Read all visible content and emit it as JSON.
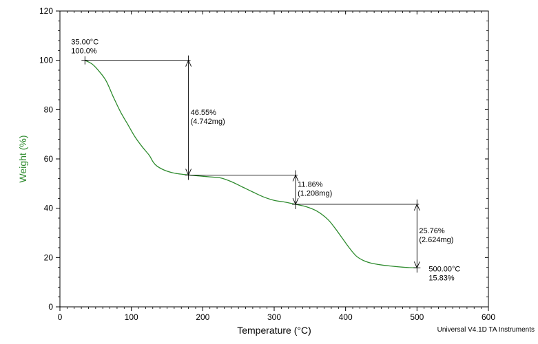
{
  "chart_data": {
    "type": "line",
    "title": "",
    "xlabel": "Temperature (°C)",
    "ylabel": "Weight (%)",
    "xlim": [
      0,
      600
    ],
    "ylim": [
      0,
      120
    ],
    "x_ticks": [
      0,
      100,
      200,
      300,
      400,
      500,
      600
    ],
    "y_ticks": [
      0,
      20,
      40,
      60,
      80,
      100,
      120
    ],
    "x_tick_labels": [
      "0",
      "100",
      "200",
      "300",
      "400",
      "500",
      "600"
    ],
    "y_tick_labels": [
      "0",
      "20",
      "40",
      "60",
      "80",
      "100",
      "120"
    ],
    "grid": false,
    "legend": "none",
    "footer": "Universal V4.1D TA Instruments",
    "colors": {
      "curve": "#2e8b2e",
      "ylabel": "#2e8b2e",
      "axes": "#000000",
      "annotation": "#000000"
    },
    "series": [
      {
        "x": [
          35,
          45,
          55,
          65,
          75,
          85,
          95,
          105,
          115,
          125,
          130,
          135,
          145,
          155,
          165,
          180,
          195,
          210,
          225,
          240,
          255,
          270,
          285,
          300,
          315,
          330,
          345,
          360,
          375,
          385,
          395,
          405,
          415,
          425,
          435,
          450,
          465,
          480,
          490,
          500
        ],
        "y": [
          100.0,
          98.5,
          95.5,
          91.5,
          85.0,
          79.0,
          74.0,
          69.0,
          65.0,
          61.5,
          59.0,
          57.3,
          55.6,
          54.6,
          54.0,
          53.5,
          53.1,
          52.7,
          52.3,
          50.8,
          48.7,
          46.6,
          44.6,
          43.2,
          42.5,
          41.6,
          40.6,
          38.8,
          35.5,
          32.0,
          28.0,
          24.0,
          20.6,
          18.8,
          17.8,
          17.0,
          16.5,
          16.1,
          15.9,
          15.83
        ]
      }
    ],
    "steps": [
      {
        "x": 180,
        "y_top": 100.0,
        "y_bottom": 53.45,
        "label1": "46.55%",
        "label2": "(4.742mg)"
      },
      {
        "x": 330,
        "y_top": 53.45,
        "y_bottom": 41.59,
        "label1": "11.86%",
        "label2": "(1.208mg)"
      },
      {
        "x": 500,
        "y_top": 41.59,
        "y_bottom": 15.83,
        "label1": "25.76%",
        "label2": "(2.624mg)"
      }
    ],
    "annotations": [
      {
        "x": 35,
        "y": 100.0,
        "line1": "35.00°C",
        "line2": "100.0%"
      },
      {
        "x": 500,
        "y": 15.83,
        "line1": "500.00°C",
        "line2": "15.83%"
      }
    ]
  }
}
